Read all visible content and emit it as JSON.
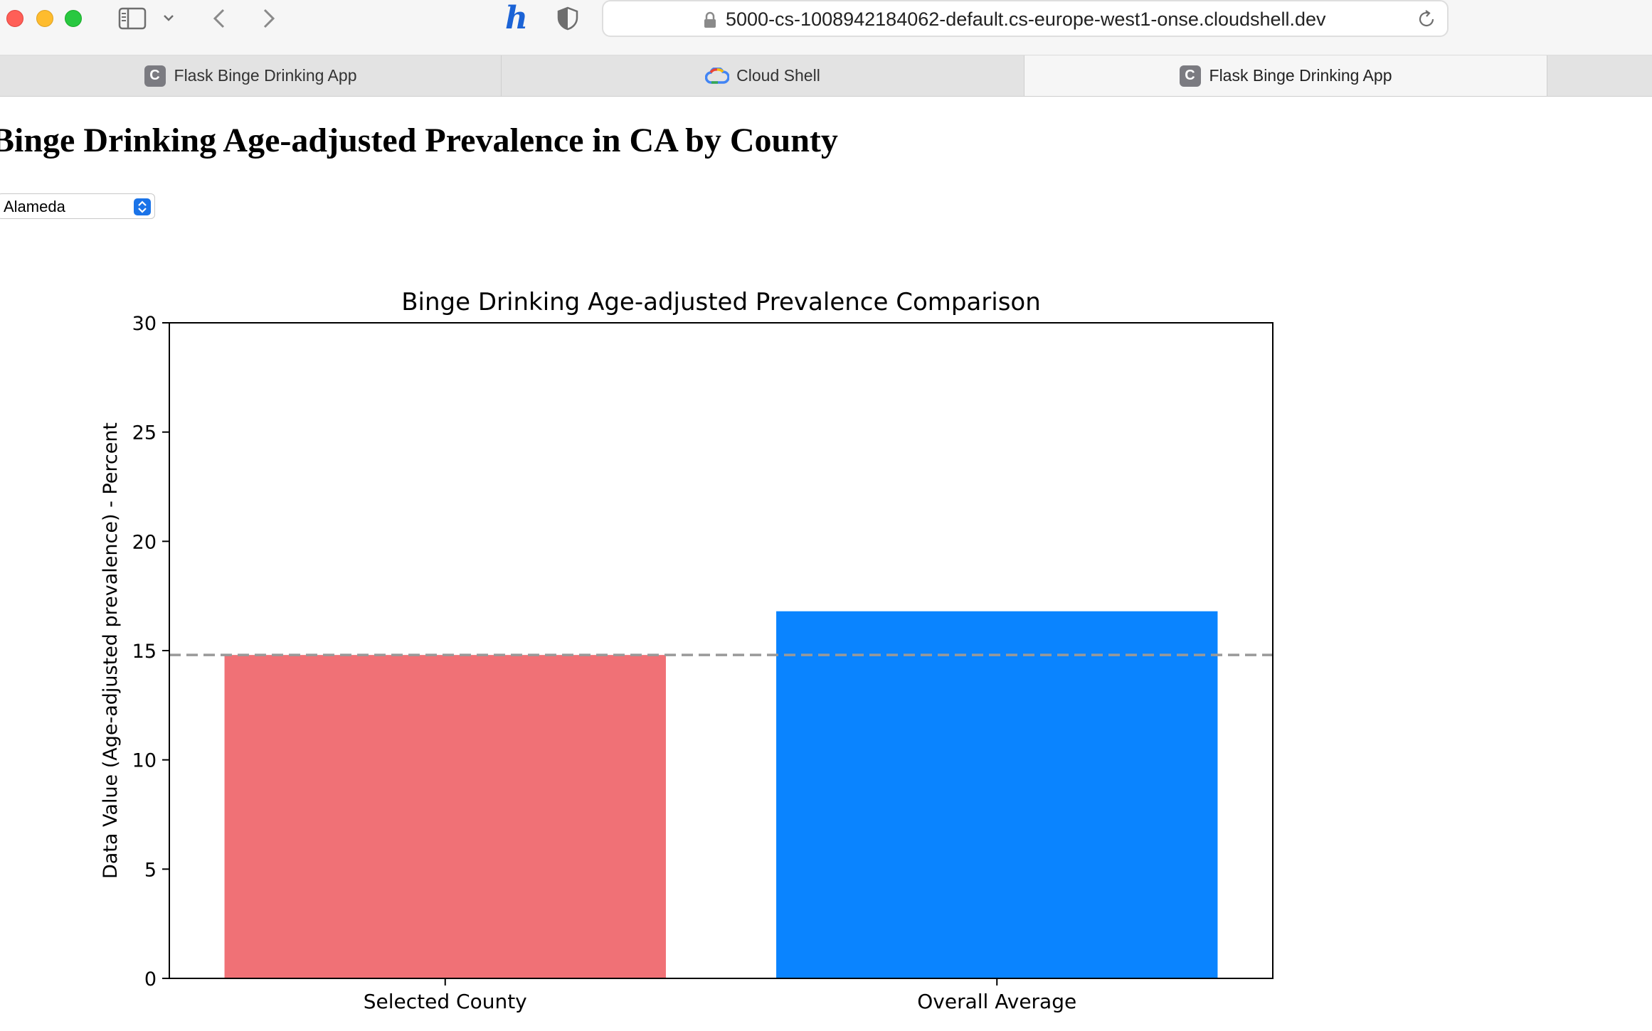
{
  "browser": {
    "url": "5000-cs-1008942184062-default.cs-europe-west1-onse.cloudshell.dev",
    "tabs": [
      {
        "label": "Flask Binge Drinking App",
        "favicon": "C",
        "active": false
      },
      {
        "label": "Cloud Shell",
        "favicon": "google-cloud-icon",
        "active": false
      },
      {
        "label": "Flask Binge Drinking App",
        "favicon": "C",
        "active": true
      }
    ]
  },
  "page": {
    "title": "Binge Drinking Age-adjusted Prevalence in CA by County",
    "county_select": {
      "selected": "Alameda"
    }
  },
  "chart_data": {
    "type": "bar",
    "title": "Binge Drinking Age-adjusted Prevalence Comparison",
    "ylabel": "Data Value (Age-adjusted prevalence) - Percent",
    "xlabel": "",
    "categories": [
      "Selected County",
      "Overall Average"
    ],
    "values": [
      14.8,
      16.8
    ],
    "bar_colors": [
      "#f07176",
      "#0a84ff"
    ],
    "reference_line": {
      "value": 14.8,
      "style": "dashed",
      "color": "#999999"
    },
    "ylim": [
      0,
      30
    ],
    "yticks": [
      0,
      5,
      10,
      15,
      20,
      25,
      30
    ],
    "grid": false,
    "legend": "none"
  }
}
